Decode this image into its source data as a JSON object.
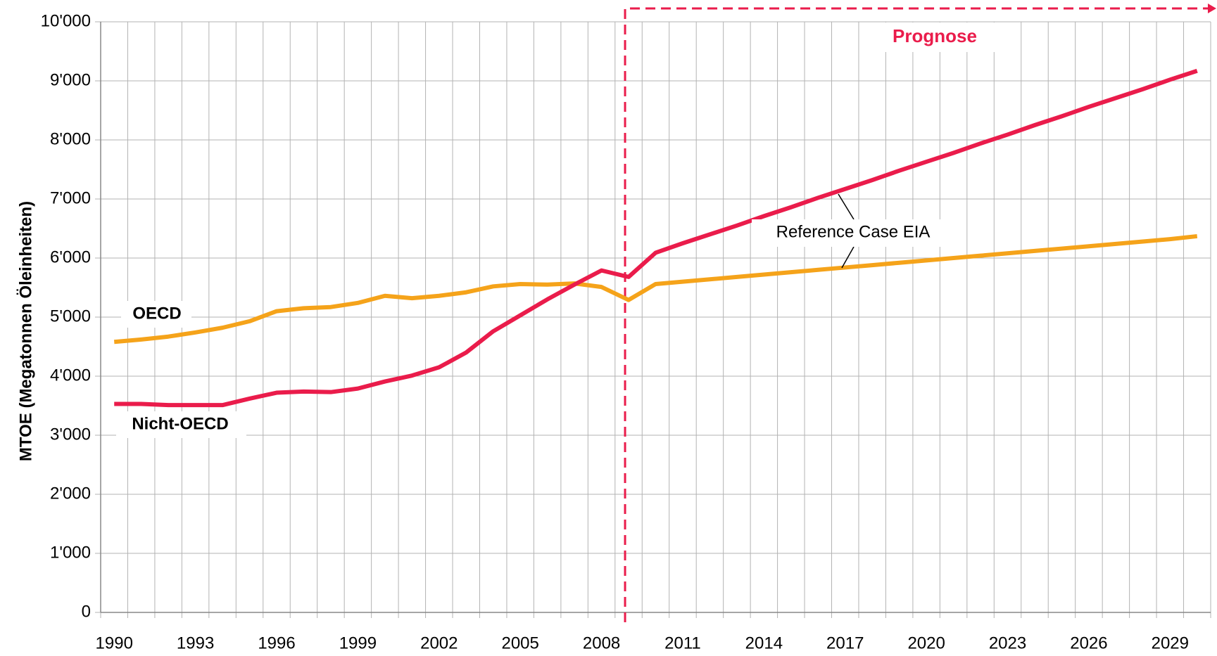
{
  "chart_data": {
    "type": "line",
    "y_label": "MTOE (Megatonnen Öleinheiten)",
    "categories": [
      "1990",
      null,
      null,
      "1993",
      null,
      null,
      "1996",
      null,
      null,
      "1999",
      null,
      null,
      "2002",
      null,
      null,
      "2005",
      null,
      null,
      "2008",
      null,
      null,
      "2011",
      null,
      null,
      "2014",
      null,
      null,
      "2017",
      null,
      null,
      "2020",
      null,
      null,
      "2023",
      null,
      null,
      "2026",
      null,
      null,
      "2029",
      null
    ],
    "series": [
      {
        "name": "OECD",
        "color": "#f5a31a",
        "values": [
          4580,
          4620,
          4670,
          4740,
          4820,
          4930,
          5100,
          5150,
          5170,
          5240,
          5360,
          5320,
          5360,
          5420,
          5520,
          5560,
          5550,
          5570,
          5510,
          5290,
          5560,
          5600,
          5640,
          5680,
          5720,
          5760,
          5800,
          5840,
          5880,
          5920,
          5960,
          6000,
          6040,
          6080,
          6120,
          6160,
          6200,
          6240,
          6280,
          6320,
          6370
        ]
      },
      {
        "name": "Nicht-OECD",
        "color": "#ea1c4b",
        "values": [
          3530,
          3530,
          3510,
          3510,
          3510,
          3620,
          3720,
          3740,
          3730,
          3790,
          3910,
          4010,
          4150,
          4400,
          4760,
          5030,
          5300,
          5550,
          5790,
          5680,
          6090,
          6250,
          6400,
          6550,
          6710,
          6860,
          7020,
          7170,
          7320,
          7480,
          7630,
          7780,
          7940,
          8090,
          8250,
          8400,
          8560,
          8710,
          8860,
          9020,
          9170
        ]
      }
    ],
    "annotations": {
      "forecast": "Prognose",
      "reference": "Reference Case EIA"
    },
    "ylim": [
      0,
      10000
    ],
    "yticks": [
      0,
      {
        "value": 1000,
        "label": "1'000"
      },
      {
        "value": 2000,
        "label": "2'000"
      },
      {
        "value": 3000,
        "label": "3'000"
      },
      {
        "value": 4000,
        "label": "4'000"
      },
      {
        "value": 5000,
        "label": "5'000"
      },
      {
        "value": 6000,
        "label": "6'000"
      },
      {
        "value": 7000,
        "label": "7'000"
      },
      {
        "value": 8000,
        "label": "8'000"
      },
      {
        "value": 9000,
        "label": "9'000"
      },
      {
        "value": 10000,
        "label": "10'000"
      }
    ],
    "grid": true
  }
}
